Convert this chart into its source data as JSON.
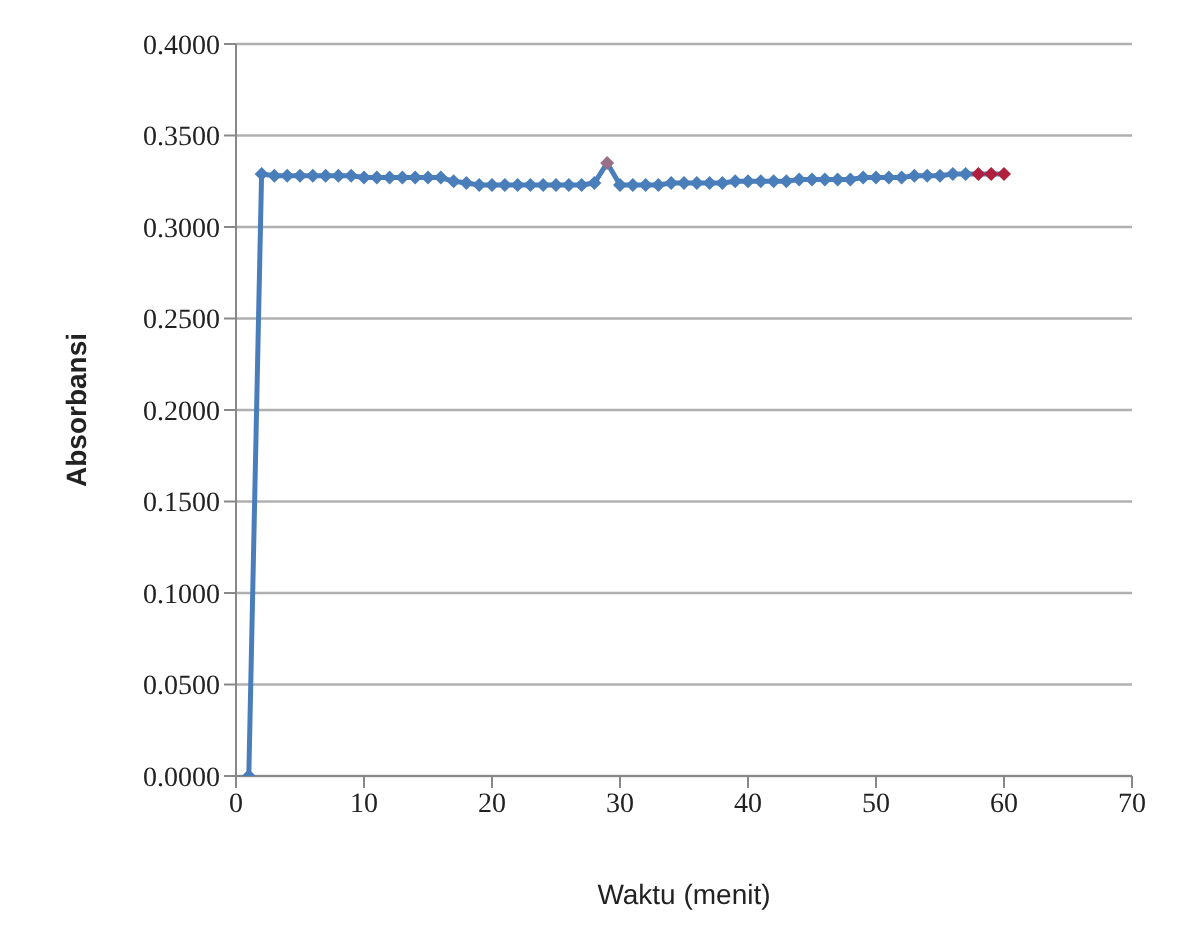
{
  "chart_data": {
    "type": "line",
    "xlabel": "Waktu (menit)",
    "ylabel": "Absorbansi",
    "x": [
      1,
      2,
      3,
      4,
      5,
      6,
      7,
      8,
      9,
      10,
      11,
      12,
      13,
      14,
      15,
      16,
      17,
      18,
      19,
      20,
      21,
      22,
      23,
      24,
      25,
      26,
      27,
      28,
      29,
      30,
      31,
      32,
      33,
      34,
      35,
      36,
      37,
      38,
      39,
      40,
      41,
      42,
      43,
      44,
      45,
      46,
      47,
      48,
      49,
      50,
      51,
      52,
      53,
      54,
      55,
      56,
      57,
      58,
      59,
      60
    ],
    "series": [
      {
        "color": "#4a7ebb",
        "values": [
          0,
          0.329,
          0.328,
          0.328,
          0.328,
          0.328,
          0.328,
          0.328,
          0.328,
          0.327,
          0.327,
          0.327,
          0.327,
          0.327,
          0.327,
          0.327,
          0.325,
          0.324,
          0.323,
          0.323,
          0.323,
          0.323,
          0.323,
          0.323,
          0.323,
          0.323,
          0.323,
          0.324,
          0.335,
          0.323,
          0.323,
          0.323,
          0.323,
          0.324,
          0.324,
          0.324,
          0.324,
          0.324,
          0.325,
          0.325,
          0.325,
          0.325,
          0.325,
          0.326,
          0.326,
          0.326,
          0.326,
          0.326,
          0.327,
          0.327,
          0.327,
          0.327,
          0.328,
          0.328,
          0.328,
          0.329,
          0.329,
          0.329,
          0.329,
          0.329
        ],
        "colors": [
          "#4a7ebb",
          "#4a7ebb",
          "#4a7ebb",
          "#4a7ebb",
          "#4a7ebb",
          "#4a7ebb",
          "#4a7ebb",
          "#4a7ebb",
          "#4a7ebb",
          "#4a7ebb",
          "#4a7ebb",
          "#4a7ebb",
          "#4a7ebb",
          "#4a7ebb",
          "#4a7ebb",
          "#4a7ebb",
          "#4a7ebb",
          "#4a7ebb",
          "#4a7ebb",
          "#4a7ebb",
          "#4a7ebb",
          "#4a7ebb",
          "#4a7ebb",
          "#4a7ebb",
          "#4a7ebb",
          "#4a7ebb",
          "#4a7ebb",
          "#4a7ebb",
          "#9a7088",
          "#4a7ebb",
          "#4a7ebb",
          "#4a7ebb",
          "#4a7ebb",
          "#4a7ebb",
          "#4a7ebb",
          "#4a7ebb",
          "#4a7ebb",
          "#4a7ebb",
          "#4a7ebb",
          "#4a7ebb",
          "#4a7ebb",
          "#4a7ebb",
          "#4a7ebb",
          "#4a7ebb",
          "#4a7ebb",
          "#4a7ebb",
          "#4a7ebb",
          "#4a7ebb",
          "#4a7ebb",
          "#4a7ebb",
          "#4a7ebb",
          "#4a7ebb",
          "#4a7ebb",
          "#4a7ebb",
          "#4a7ebb",
          "#4a7ebb",
          "#4a7ebb",
          "#b0203c",
          "#b0203c",
          "#b0203c"
        ]
      }
    ],
    "xlim": [
      0,
      70
    ],
    "xticks": [
      0,
      10,
      20,
      30,
      40,
      50,
      60,
      70
    ],
    "ylim": [
      0,
      0.4
    ],
    "yticks": [
      {
        "value": 0,
        "label": "0.0000"
      },
      {
        "value": 0.05,
        "label": "0.0500"
      },
      {
        "value": 0.1,
        "label": "0.1000"
      },
      {
        "value": 0.15,
        "label": "0.1500"
      },
      {
        "value": 0.2,
        "label": "0.2000"
      },
      {
        "value": 0.25,
        "label": "0.2500"
      },
      {
        "value": 0.3,
        "label": "0.3000"
      },
      {
        "value": 0.35,
        "label": "0.3500"
      },
      {
        "value": 0.4,
        "label": "0.4000"
      }
    ],
    "grid": "y",
    "marker": "diamond",
    "line_style": "solid"
  }
}
